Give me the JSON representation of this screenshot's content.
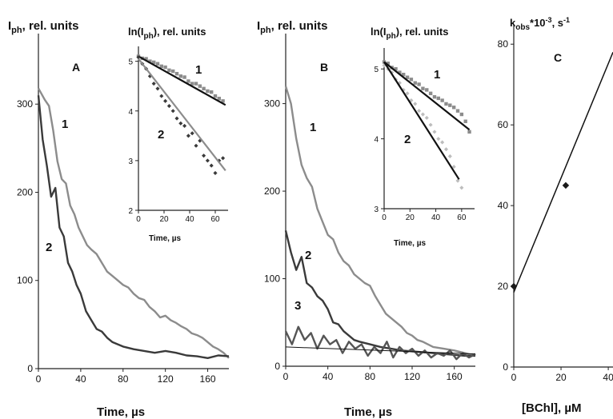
{
  "chart_data": [
    {
      "type": "line",
      "panel": "A",
      "ylabel": "Iph, rel. units",
      "xlabel": "Time, µs",
      "xlim": [
        0,
        180
      ],
      "ylim": [
        0,
        380
      ],
      "xticks": [
        "0",
        "40",
        "80",
        "120",
        "160"
      ],
      "yticks": [
        "0",
        "100",
        "200",
        "300"
      ],
      "series": [
        {
          "name": "1",
          "color": "#8c8c8c",
          "x": [
            0,
            6,
            10,
            14,
            18,
            22,
            26,
            30,
            34,
            38,
            42,
            46,
            50,
            55,
            60,
            65,
            70,
            75,
            80,
            85,
            90,
            95,
            100,
            105,
            110,
            115,
            120,
            125,
            130,
            135,
            140,
            145,
            150,
            155,
            160,
            165,
            170,
            175,
            180
          ],
          "values": [
            318,
            305,
            298,
            270,
            235,
            215,
            210,
            185,
            175,
            160,
            150,
            140,
            135,
            130,
            120,
            110,
            105,
            100,
            95,
            92,
            85,
            80,
            78,
            70,
            65,
            58,
            60,
            55,
            52,
            48,
            45,
            40,
            38,
            35,
            30,
            25,
            22,
            18,
            12
          ]
        },
        {
          "name": "2",
          "color": "#3a3a3a",
          "x": [
            0,
            4,
            8,
            12,
            16,
            20,
            24,
            28,
            32,
            36,
            40,
            45,
            50,
            55,
            60,
            65,
            70,
            80,
            90,
            100,
            110,
            120,
            130,
            140,
            150,
            160,
            170,
            180
          ],
          "values": [
            310,
            260,
            230,
            195,
            205,
            160,
            150,
            120,
            110,
            95,
            85,
            65,
            55,
            45,
            42,
            35,
            30,
            25,
            22,
            20,
            18,
            20,
            18,
            15,
            14,
            12,
            15,
            14
          ]
        }
      ]
    },
    {
      "type": "scatter",
      "panel": "A-inset",
      "ylabel": "ln(Iph), rel. units",
      "xlabel": "Time, µs",
      "xlim": [
        0,
        70
      ],
      "ylim": [
        2,
        5.3
      ],
      "xticks": [
        "0",
        "20",
        "40",
        "60"
      ],
      "yticks": [
        "2",
        "3",
        "4",
        "5"
      ],
      "series": [
        {
          "name": "1",
          "color": "#8c8c8c",
          "x": [
            0,
            3,
            6,
            9,
            12,
            15,
            18,
            21,
            24,
            27,
            30,
            33,
            36,
            39,
            42,
            45,
            48,
            51,
            54,
            57,
            60,
            63,
            66
          ],
          "values": [
            5.1,
            5.06,
            5.05,
            5.0,
            4.98,
            4.95,
            4.9,
            4.88,
            4.82,
            4.8,
            4.75,
            4.7,
            4.68,
            4.6,
            4.55,
            4.55,
            4.5,
            4.45,
            4.4,
            4.38,
            4.3,
            4.25,
            4.2
          ],
          "fit": [
            [
              0,
              5.1
            ],
            [
              68,
              4.12
            ]
          ]
        },
        {
          "name": "2",
          "color": "#3a3a3a",
          "x": [
            0,
            3,
            6,
            9,
            12,
            15,
            18,
            21,
            24,
            27,
            30,
            33,
            36,
            39,
            42,
            45,
            48,
            51,
            54,
            57,
            60,
            63,
            66
          ],
          "values": [
            5.08,
            4.95,
            4.85,
            4.7,
            4.55,
            4.45,
            4.3,
            4.2,
            4.1,
            4.0,
            3.85,
            3.75,
            3.7,
            3.5,
            3.55,
            3.3,
            3.4,
            3.1,
            3.0,
            2.9,
            2.75,
            3.0,
            3.05
          ],
          "fit": [
            [
              0,
              5.05
            ],
            [
              68,
              2.8
            ]
          ]
        }
      ]
    },
    {
      "type": "line",
      "panel": "B",
      "ylabel": "Iph, rel. units",
      "xlabel": "Time, µs",
      "xlim": [
        0,
        180
      ],
      "ylim": [
        0,
        380
      ],
      "xticks": [
        "0",
        "40",
        "80",
        "120",
        "160"
      ],
      "yticks": [
        "0",
        "100",
        "200",
        "300"
      ],
      "series": [
        {
          "name": "1",
          "color": "#8c8c8c",
          "x": [
            0,
            5,
            10,
            15,
            20,
            25,
            30,
            35,
            40,
            45,
            50,
            55,
            60,
            65,
            70,
            75,
            80,
            85,
            90,
            95,
            100,
            105,
            110,
            115,
            120,
            125,
            130,
            140,
            150,
            160,
            170,
            180
          ],
          "values": [
            320,
            300,
            260,
            230,
            215,
            205,
            180,
            165,
            150,
            145,
            130,
            120,
            115,
            105,
            100,
            95,
            92,
            80,
            70,
            60,
            55,
            50,
            45,
            38,
            35,
            30,
            28,
            22,
            20,
            18,
            15,
            12
          ]
        },
        {
          "name": "2",
          "color": "#3a3a3a",
          "x": [
            0,
            5,
            10,
            15,
            20,
            25,
            30,
            35,
            40,
            45,
            50,
            55,
            60,
            65,
            70,
            80,
            90,
            100,
            110,
            120,
            130,
            140,
            150,
            160,
            170,
            180
          ],
          "values": [
            155,
            130,
            110,
            125,
            95,
            90,
            80,
            75,
            65,
            50,
            48,
            40,
            35,
            30,
            28,
            25,
            22,
            20,
            18,
            17,
            16,
            15,
            14,
            13,
            12,
            12
          ]
        },
        {
          "name": "3",
          "color": "#555555",
          "x": [
            0,
            6,
            12,
            18,
            24,
            30,
            36,
            42,
            48,
            54,
            60,
            66,
            72,
            78,
            84,
            90,
            96,
            102,
            108,
            114,
            120,
            126,
            132,
            138,
            144,
            150,
            156,
            162,
            168,
            174,
            180
          ],
          "values": [
            40,
            25,
            45,
            30,
            38,
            20,
            35,
            25,
            30,
            15,
            28,
            20,
            25,
            12,
            22,
            15,
            28,
            10,
            22,
            15,
            20,
            12,
            18,
            10,
            15,
            12,
            18,
            8,
            15,
            10,
            14
          ],
          "fit": [
            [
              0,
              22
            ],
            [
              180,
              14
            ]
          ]
        }
      ]
    },
    {
      "type": "scatter",
      "panel": "B-inset",
      "ylabel": "ln(Iph), rel. units",
      "xlabel": "Time, µs",
      "xlim": [
        0,
        70
      ],
      "ylim": [
        3,
        5.3
      ],
      "xticks": [
        "0",
        "20",
        "40",
        "60"
      ],
      "yticks": [
        "3",
        "4",
        "5"
      ],
      "series": [
        {
          "name": "1",
          "color": "#8c8c8c",
          "x": [
            0,
            3,
            6,
            9,
            12,
            15,
            18,
            21,
            24,
            27,
            30,
            33,
            36,
            39,
            42,
            45,
            48,
            51,
            54,
            57,
            60,
            63,
            66
          ],
          "values": [
            5.1,
            5.08,
            5.02,
            5.0,
            4.95,
            4.92,
            4.88,
            4.85,
            4.8,
            4.78,
            4.72,
            4.7,
            4.65,
            4.6,
            4.58,
            4.55,
            4.5,
            4.48,
            4.45,
            4.4,
            4.35,
            4.25,
            4.1
          ],
          "fit": [
            [
              0,
              5.1
            ],
            [
              66,
              4.13
            ]
          ]
        },
        {
          "name": "2",
          "color": "#bdbdbd",
          "x": [
            0,
            3,
            6,
            9,
            12,
            15,
            18,
            21,
            24,
            27,
            30,
            33,
            36,
            39,
            42,
            45,
            48,
            51,
            54,
            57,
            60
          ],
          "values": [
            5.05,
            5.0,
            4.95,
            4.85,
            4.8,
            4.7,
            4.65,
            4.55,
            4.5,
            4.4,
            4.35,
            4.3,
            4.2,
            4.1,
            4.0,
            3.95,
            3.85,
            3.75,
            3.6,
            3.4,
            3.3
          ],
          "fit": [
            [
              0,
              5.1
            ],
            [
              58,
              3.42
            ]
          ]
        }
      ]
    },
    {
      "type": "line",
      "panel": "C",
      "ylabel": "kobs*10-3, s-1",
      "xlabel": "[BChl], µM",
      "xlim": [
        0,
        42
      ],
      "ylim": [
        0,
        85
      ],
      "xticks": [
        "0",
        "20",
        "40"
      ],
      "yticks": [
        "0",
        "20",
        "40",
        "60",
        "80"
      ],
      "series": [
        {
          "name": "data",
          "color": "#1a1a1a",
          "x": [
            0,
            22
          ],
          "values": [
            20,
            45
          ],
          "fit": [
            [
              0,
              18.5
            ],
            [
              42,
              78
            ]
          ]
        }
      ]
    }
  ],
  "labels": {
    "panelA": {
      "letter": "A",
      "ylabel_main": "I",
      "ylabel_sub": "ph",
      "ylabel_rest": ", rel. units",
      "curve1": "1",
      "curve2": "2",
      "xlabel": "Time, µs"
    },
    "insetA": {
      "ylabel_pre": "ln(I",
      "ylabel_sub": "ph",
      "ylabel_post": "), rel. units",
      "curve1": "1",
      "curve2": "2",
      "xlabel": "Time, µs"
    },
    "panelB": {
      "letter": "B",
      "ylabel_main": "I",
      "ylabel_sub": "ph",
      "ylabel_rest": ", rel. units",
      "curve1": "1",
      "curve2": "2",
      "curve3": "3",
      "xlabel": "Time, µs"
    },
    "insetB": {
      "ylabel_pre": "ln(I",
      "ylabel_sub": "ph",
      "ylabel_post": "), rel. units",
      "curve1": "1",
      "curve2": "2",
      "xlabel": "Time, µs"
    },
    "panelC": {
      "letter": "C",
      "ylabel_main": "k",
      "ylabel_sub": "obs",
      "ylabel_mid": "*10",
      "ylabel_sup": "-3",
      "ylabel_rest": ", s",
      "ylabel_sup2": "-1",
      "xlabel": "[BChl], µM"
    }
  }
}
